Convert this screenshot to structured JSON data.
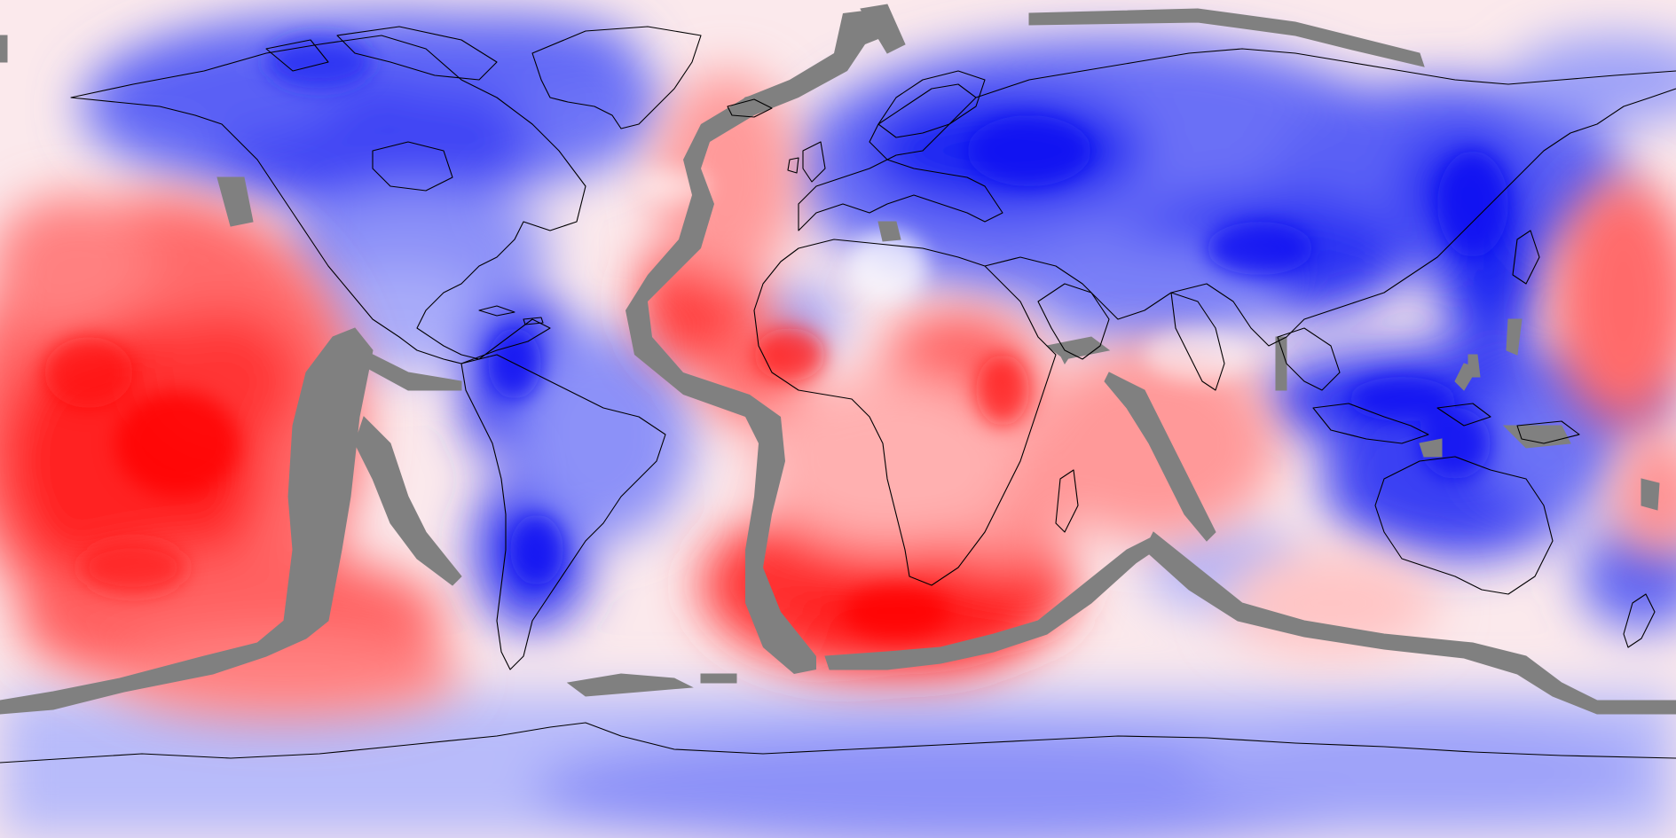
{
  "map": {
    "projection": "equirectangular",
    "extent": "global",
    "color_scale": {
      "type": "diverging",
      "low_color": "#0000ff",
      "mid_color": "#ffffff",
      "high_color": "#ff0000"
    },
    "mask_color": "#808080",
    "coastline_color": "#000000",
    "background_color": "#ffffff"
  }
}
